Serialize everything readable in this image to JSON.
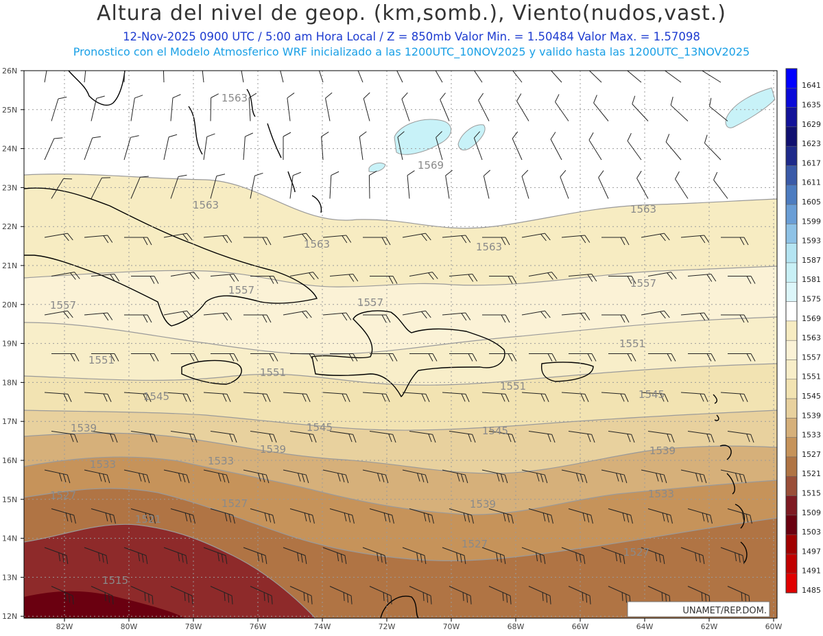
{
  "header": {
    "title": "Altura del nivel de geop. (km,somb.), Viento(nudos,vast.)",
    "line2": "12-Nov-2025  0900 UTC / 5:00 am Hora Local / Z = 850mb    Valor Min. = 1.50484  Valor Max. = 1.57098",
    "line3": "Pronostico con el Modelo Atmosferico WRF inicializado a las 1200UTC_10NOV2025 y valido hasta las  1200UTC_13NOV2025"
  },
  "axes": {
    "lat_labels": [
      "26N",
      "25N",
      "24N",
      "23N",
      "22N",
      "21N",
      "20N",
      "19N",
      "18N",
      "17N",
      "16N",
      "15N",
      "14N",
      "13N",
      "12N"
    ],
    "lon_labels": [
      "82W",
      "80W",
      "78W",
      "76W",
      "74W",
      "72W",
      "70W",
      "68W",
      "66W",
      "64W",
      "62W",
      "60W"
    ]
  },
  "colorbar": {
    "levels": [
      "1641",
      "1635",
      "1629",
      "1623",
      "1617",
      "1611",
      "1605",
      "1599",
      "1593",
      "1587",
      "1581",
      "1575",
      "1569",
      "1563",
      "1557",
      "1551",
      "1545",
      "1539",
      "1533",
      "1527",
      "1521",
      "1515",
      "1509",
      "1503",
      "1497",
      "1491",
      "1485"
    ],
    "colors": [
      "#0000ff",
      "#0a0ad8",
      "#121299",
      "#101070",
      "#1e2a8a",
      "#3a5aa8",
      "#4d7cc0",
      "#6a9ed6",
      "#8ec2e6",
      "#b4e4f2",
      "#c8f0f6",
      "#dcf6fa",
      "#ffffff",
      "#f7ecc2",
      "#fbf2d6",
      "#f8eec9",
      "#f2e3b2",
      "#e8d19e",
      "#d6b07a",
      "#c6935a",
      "#b07444",
      "#9a4e38",
      "#7e1a22",
      "#6a0010",
      "#a00000",
      "#c00000",
      "#e00000"
    ]
  },
  "contours": {
    "fill_colors": [
      "#ffffff",
      "#f7ecc2",
      "#fbf2d6",
      "#f8eec9",
      "#f2e3b2",
      "#e8d19e",
      "#d6b07a",
      "#c6935a",
      "#b07444",
      "#8e2a2a",
      "#6a0010"
    ],
    "labels": [
      "1563",
      "1569",
      "1563",
      "1563",
      "1563",
      "1563",
      "1557",
      "1557",
      "1557",
      "1557",
      "1551",
      "1551",
      "1551",
      "1551",
      "1545",
      "1545",
      "1545",
      "1545",
      "1539",
      "1539",
      "1539",
      "1539",
      "1533",
      "1533",
      "1533",
      "1527",
      "1527",
      "1527",
      "1527",
      "1521",
      "1515"
    ],
    "cyan_color": "#c8f2f8"
  },
  "credit": "UNAMET/REP.DOM."
}
